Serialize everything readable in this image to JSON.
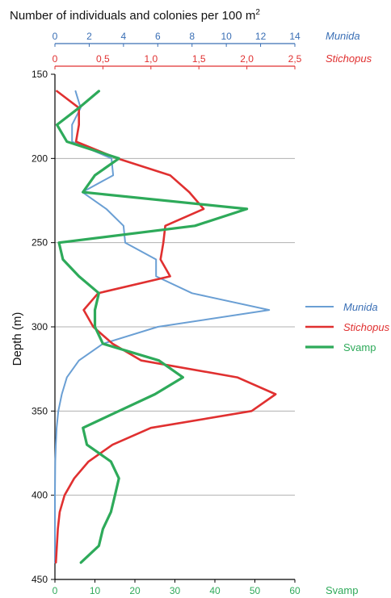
{
  "chart_data": {
    "type": "line",
    "title": "Number of individuals and colonies per 100 m",
    "title_superscript": "2",
    "ylabel": "Depth (m)",
    "ylim": [
      150,
      450
    ],
    "y_inverted": true,
    "yticks": [
      150,
      200,
      250,
      300,
      350,
      400,
      450
    ],
    "grid": "horizontal",
    "legend_position": "right",
    "colors": {
      "Munida": "#6a9fd4",
      "Stichopus": "#e03030",
      "Svamp": "#2eaa5a",
      "munida_label": "#3a6fb5"
    },
    "x_axes": [
      {
        "series": "Munida",
        "position": "top",
        "name_label": "Munida",
        "xlim": [
          0,
          14
        ],
        "ticks": [
          "0",
          "2",
          "4",
          "6",
          "8",
          "10",
          "12",
          "14"
        ],
        "tick_values": [
          0,
          2,
          4,
          6,
          8,
          10,
          12,
          14
        ]
      },
      {
        "series": "Stichopus",
        "position": "top",
        "name_label": "Stichopus",
        "xlim": [
          0,
          2.5
        ],
        "ticks": [
          "0",
          "0,5",
          "1,0",
          "1,5",
          "2,0",
          "2,5"
        ],
        "tick_values": [
          0,
          0.5,
          1.0,
          1.5,
          2.0,
          2.5
        ]
      },
      {
        "series": "Svamp",
        "position": "bottom",
        "name_label": "Svamp",
        "xlim": [
          0,
          60
        ],
        "ticks": [
          "0",
          "10",
          "20",
          "30",
          "40",
          "50",
          "60"
        ],
        "tick_values": [
          0,
          10,
          20,
          30,
          40,
          50,
          60
        ]
      }
    ],
    "series": [
      {
        "name": "Munida",
        "points": [
          [
            1.2,
            160
          ],
          [
            1.5,
            170
          ],
          [
            1.0,
            180
          ],
          [
            1.0,
            190
          ],
          [
            3.3,
            200
          ],
          [
            3.4,
            210
          ],
          [
            1.6,
            220
          ],
          [
            3.0,
            230
          ],
          [
            4.0,
            240
          ],
          [
            4.1,
            250
          ],
          [
            5.9,
            260
          ],
          [
            5.9,
            270
          ],
          [
            8.0,
            280
          ],
          [
            12.5,
            290
          ],
          [
            6.0,
            300
          ],
          [
            2.8,
            310
          ],
          [
            1.4,
            320
          ],
          [
            0.7,
            330
          ],
          [
            0.4,
            340
          ],
          [
            0.2,
            350
          ],
          [
            0.1,
            360
          ],
          [
            0.05,
            370
          ],
          [
            0.02,
            380
          ],
          [
            0.01,
            390
          ],
          [
            0,
            400
          ],
          [
            0,
            410
          ],
          [
            0,
            420
          ],
          [
            0,
            430
          ],
          [
            0,
            440
          ]
        ]
      },
      {
        "name": "Stichopus",
        "points": [
          [
            0.02,
            160
          ],
          [
            0.25,
            170
          ],
          [
            0.25,
            180
          ],
          [
            0.22,
            190
          ],
          [
            0.65,
            200
          ],
          [
            1.2,
            210
          ],
          [
            1.4,
            220
          ],
          [
            1.55,
            230
          ],
          [
            1.15,
            240
          ],
          [
            1.13,
            250
          ],
          [
            1.1,
            260
          ],
          [
            1.2,
            270
          ],
          [
            0.45,
            280
          ],
          [
            0.3,
            290
          ],
          [
            0.4,
            300
          ],
          [
            0.6,
            310
          ],
          [
            0.9,
            320
          ],
          [
            1.9,
            330
          ],
          [
            2.3,
            340
          ],
          [
            2.05,
            350
          ],
          [
            1.0,
            360
          ],
          [
            0.6,
            370
          ],
          [
            0.35,
            380
          ],
          [
            0.2,
            390
          ],
          [
            0.1,
            400
          ],
          [
            0.05,
            410
          ],
          [
            0.03,
            420
          ],
          [
            0.02,
            430
          ],
          [
            0.01,
            440
          ]
        ]
      },
      {
        "name": "Svamp",
        "points": [
          [
            11,
            160
          ],
          [
            6,
            170
          ],
          [
            0.5,
            180
          ],
          [
            3,
            190
          ],
          [
            16,
            200
          ],
          [
            10,
            210
          ],
          [
            7,
            220
          ],
          [
            48,
            230
          ],
          [
            35,
            240
          ],
          [
            1,
            250
          ],
          [
            2,
            260
          ],
          [
            6,
            270
          ],
          [
            11,
            280
          ],
          [
            10,
            290
          ],
          [
            10,
            300
          ],
          [
            12,
            310
          ],
          [
            26,
            320
          ],
          [
            32,
            330
          ],
          [
            25,
            340
          ],
          [
            16,
            350
          ],
          [
            7,
            360
          ],
          [
            8,
            370
          ],
          [
            14,
            380
          ],
          [
            16,
            390
          ],
          [
            15,
            400
          ],
          [
            14,
            410
          ],
          [
            12,
            420
          ],
          [
            11,
            430
          ],
          [
            6.5,
            440
          ]
        ]
      }
    ]
  }
}
